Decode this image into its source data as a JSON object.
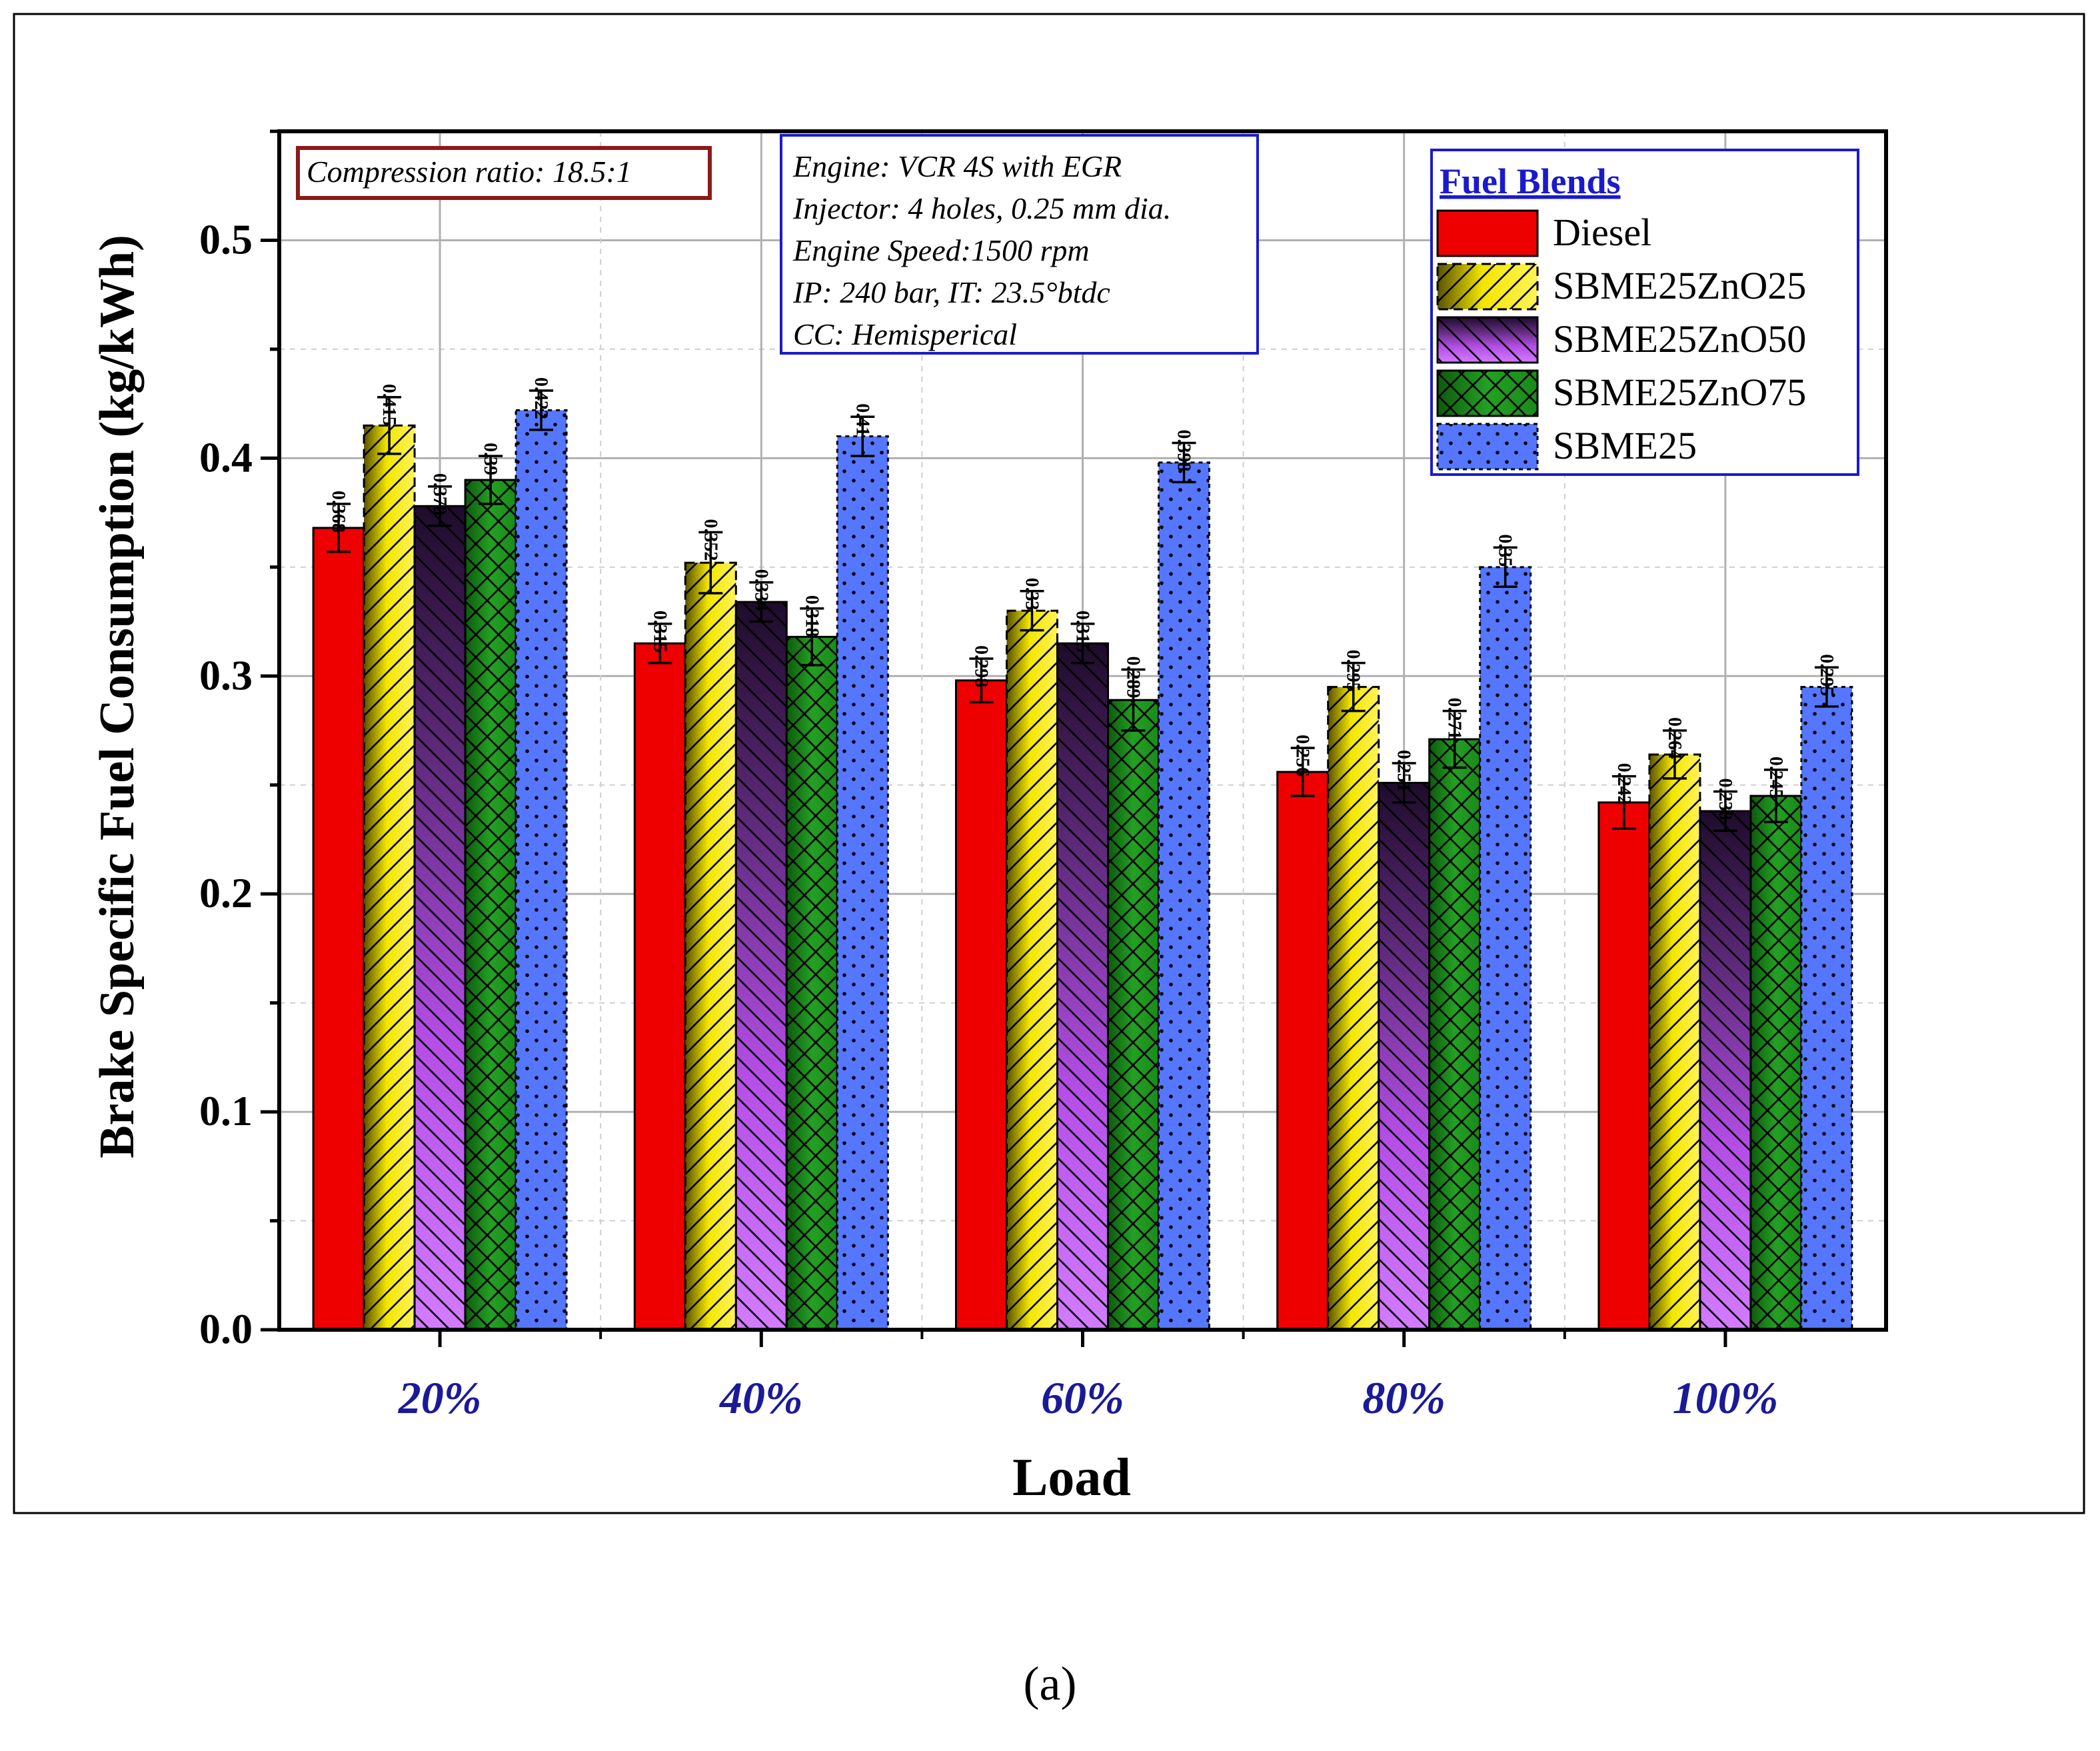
{
  "chart_data": {
    "type": "bar",
    "xlabel": "Load",
    "ylabel": "Brake Specific Fuel Consumption (kg/kWh)",
    "categories": [
      "20%",
      "40%",
      "60%",
      "80%",
      "100%"
    ],
    "ylim": [
      0,
      0.55
    ],
    "yticks": [
      "0.0",
      "0.1",
      "0.2",
      "0.3",
      "0.4",
      "0.5"
    ],
    "grid": true,
    "legend_title": "Fuel Blends",
    "legend_position": "top-right",
    "series": [
      {
        "name": "Diesel",
        "color": "#ee0000",
        "pattern": "solid",
        "values": [
          0.368,
          0.315,
          0.298,
          0.256,
          0.242
        ],
        "labels": [
          "0.368",
          "0.315",
          "0.298",
          "0.256",
          "0.242"
        ]
      },
      {
        "name": "SBME25ZnO25",
        "color": "#f2e600",
        "pattern": "diagonal-right",
        "values": [
          0.415,
          0.352,
          0.33,
          0.295,
          0.264
        ],
        "labels": [
          "0.415",
          "0.352",
          "0.33",
          "0.295",
          "0.264"
        ]
      },
      {
        "name": "SBME25ZnO50",
        "color": "#c04ff0",
        "pattern": "diagonal-left",
        "values": [
          0.378,
          0.334,
          0.315,
          0.251,
          0.238
        ],
        "labels": [
          "0.378",
          "0.334",
          "0.315",
          "0.251",
          "0.238"
        ]
      },
      {
        "name": "SBME25ZnO75",
        "color": "#1e8c1e",
        "pattern": "crosshatch",
        "values": [
          0.39,
          0.318,
          0.289,
          0.271,
          0.245
        ],
        "labels": [
          "0.39",
          "0.318",
          "0.289",
          "0.271",
          "0.245"
        ]
      },
      {
        "name": "SBME25",
        "color": "#5577ff",
        "pattern": "dots",
        "values": [
          0.422,
          0.41,
          0.398,
          0.35,
          0.295
        ],
        "labels": [
          "0.422",
          "0.41",
          "0.398",
          "0.35",
          "0.295"
        ]
      }
    ],
    "error_bars": [
      [
        0.011,
        0.009,
        0.01,
        0.011,
        0.012
      ],
      [
        0.013,
        0.014,
        0.009,
        0.011,
        0.011
      ],
      [
        0.009,
        0.009,
        0.009,
        0.009,
        0.009
      ],
      [
        0.011,
        0.013,
        0.014,
        0.013,
        0.012
      ],
      [
        0.009,
        0.009,
        0.009,
        0.009,
        0.009
      ]
    ],
    "annotations": {
      "compression": "Compression ratio: 18.5:1",
      "engine_lines": [
        "Engine: VCR 4S with EGR",
        "Injector: 4 holes, 0.25 mm dia.",
        "Engine Speed:1500 rpm",
        "IP: 240 bar, IT: 23.5°btdc",
        "CC: Hemisperical"
      ]
    }
  },
  "caption": "(a)"
}
